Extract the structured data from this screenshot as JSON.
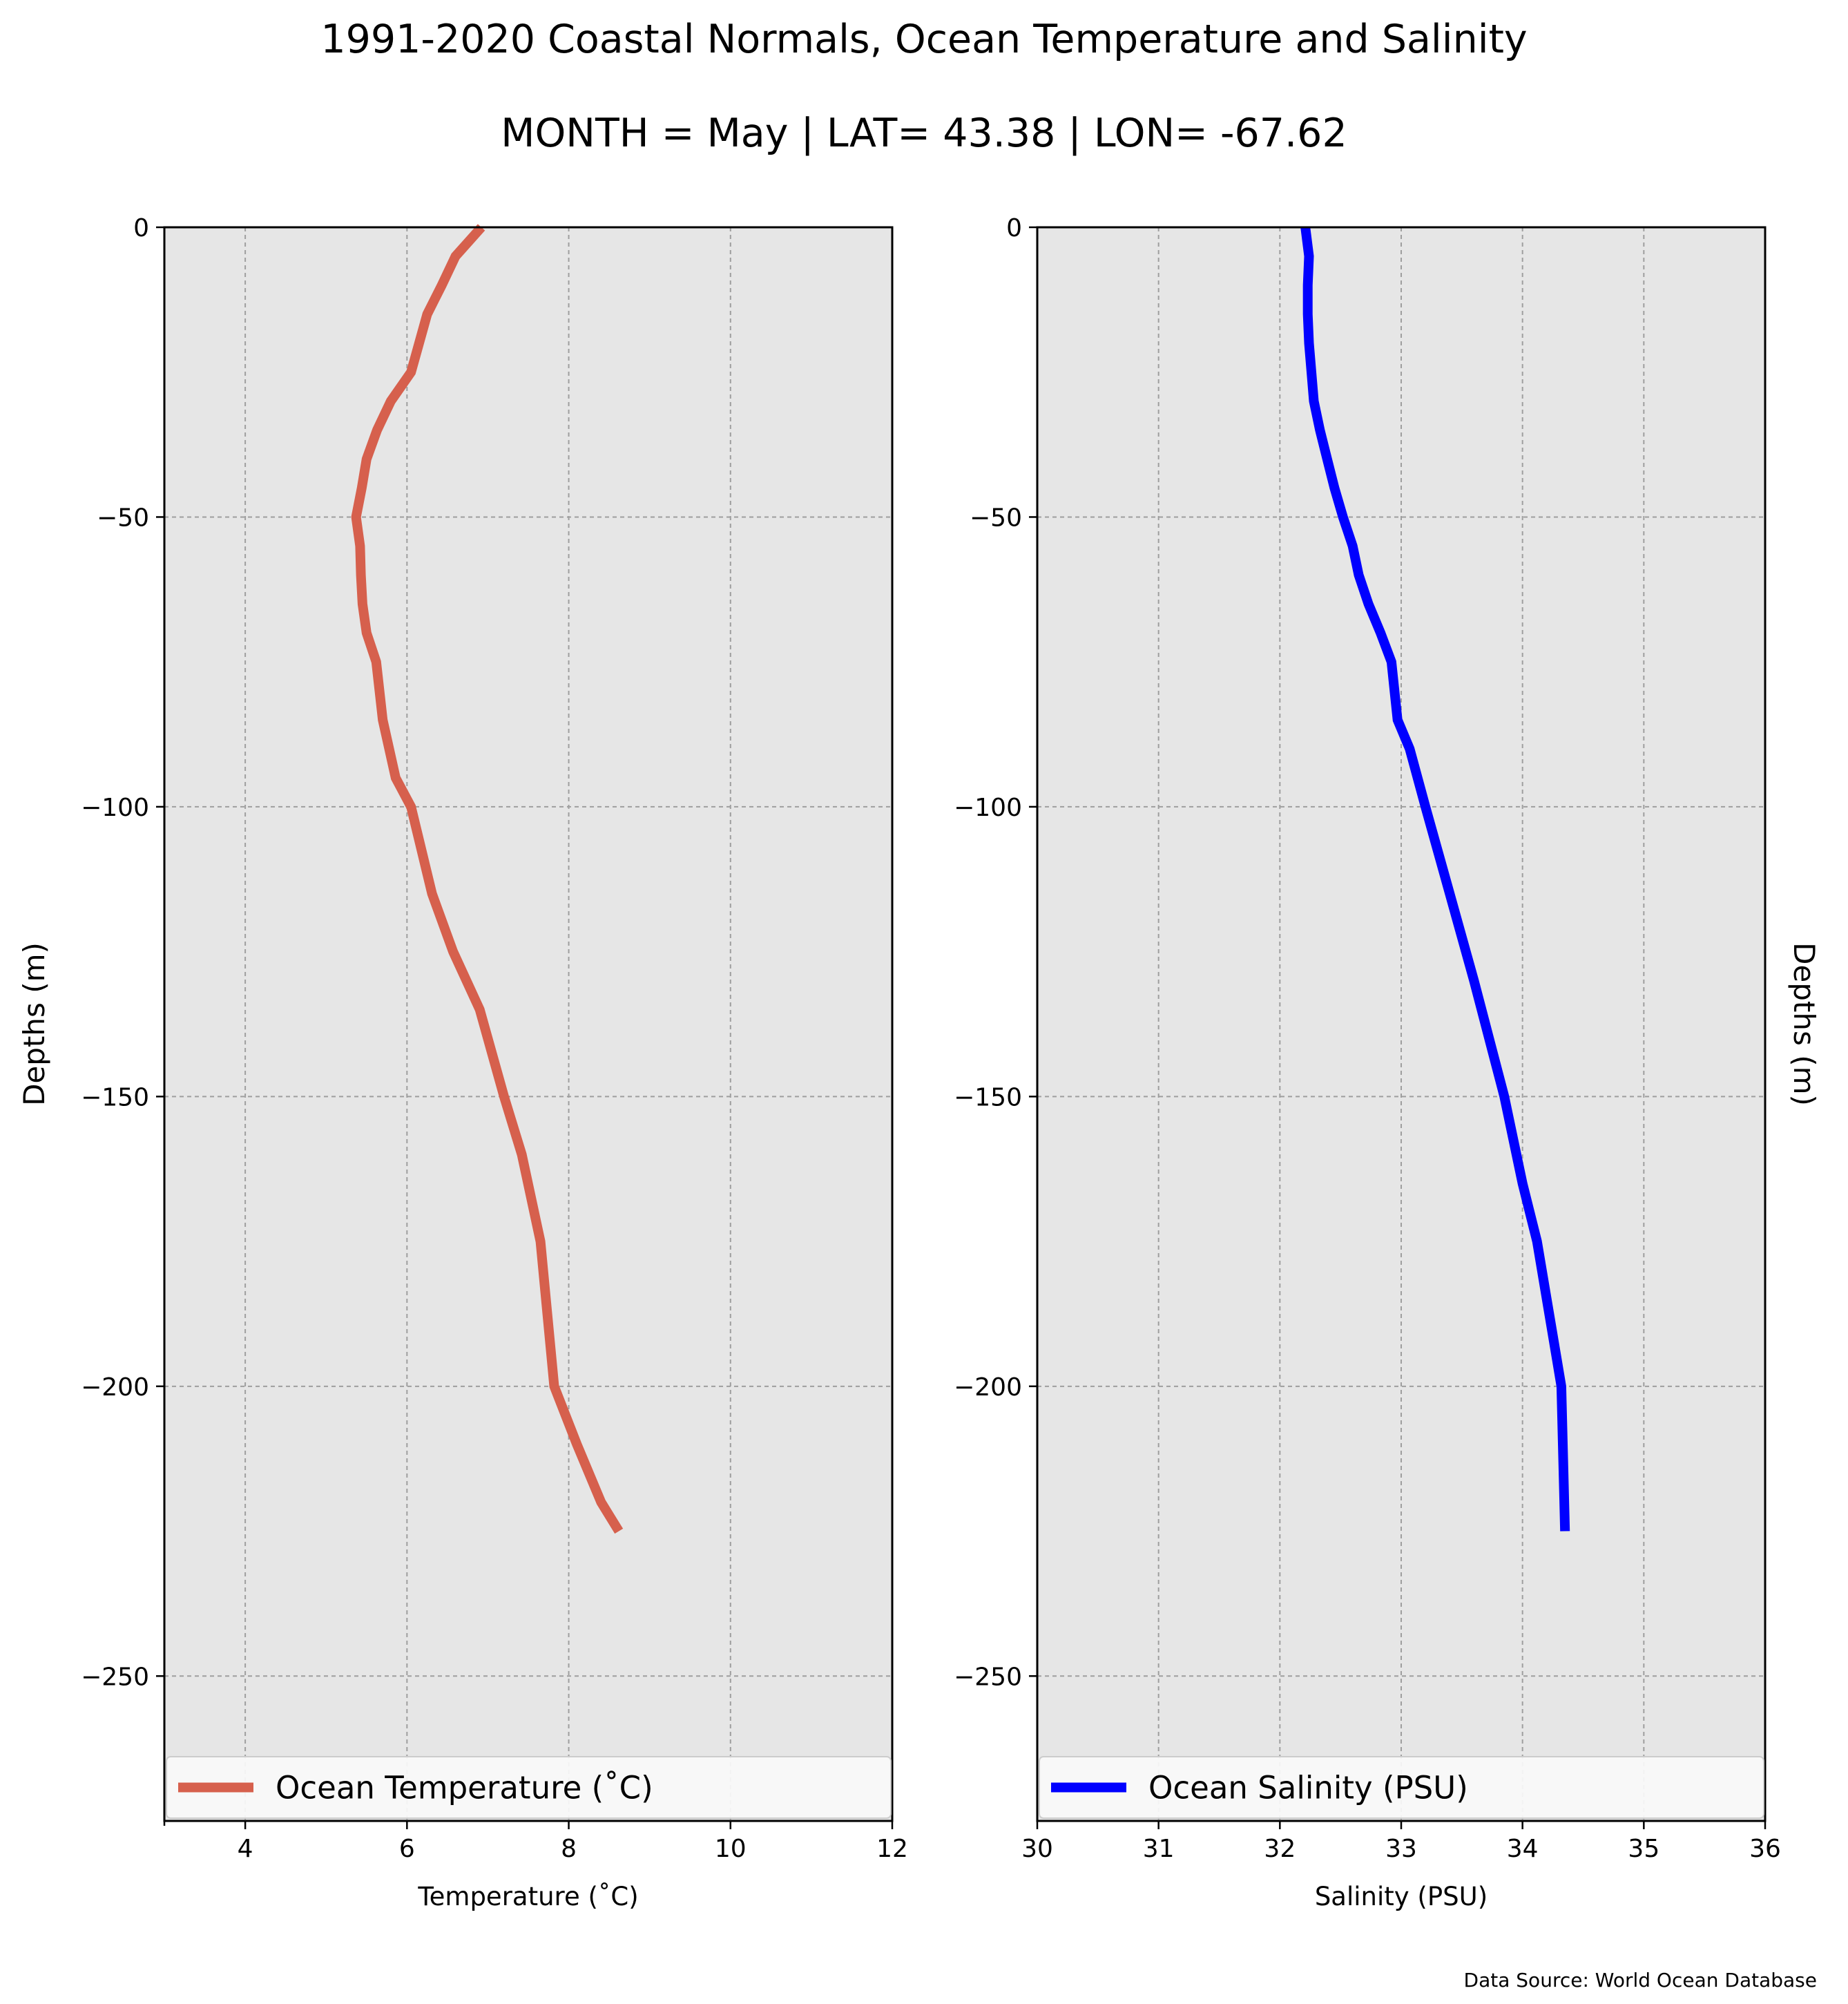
{
  "title_line1": "1991-2020 Coastal Normals, Ocean Temperature and Salinity",
  "title_line2": "MONTH = May | LAT= 43.38 | LON= -67.62",
  "source_note": "Data Source: World Ocean Database",
  "colors": {
    "background": "#e6e6e6",
    "grid": "#9e9e9e",
    "temperature": "#d6604d",
    "salinity": "#0000ff"
  },
  "chart_data": [
    {
      "type": "line",
      "xlabel": "Temperature ($^\\circ$C)",
      "xlabel_display": "Temperature (˚C)",
      "ylabel": "Depths (m)",
      "xlim": [
        3,
        12
      ],
      "ylim": [
        -275,
        0
      ],
      "xticks": [
        4,
        6,
        8,
        10,
        12
      ],
      "xtick_labels": [
        "4",
        "6",
        "8",
        "10",
        "12"
      ],
      "yticks": [
        0,
        -50,
        -100,
        -150,
        -200,
        -250
      ],
      "ytick_labels": [
        "0",
        "−50",
        "−100",
        "−150",
        "−200",
        "−250"
      ],
      "grid": true,
      "legend": "lower center",
      "series": [
        {
          "name": "Ocean Temperature (˚C)",
          "color": "#d6604d",
          "x": [
            6.92,
            6.6,
            6.43,
            6.25,
            6.05,
            5.8,
            5.63,
            5.5,
            5.44,
            5.37,
            5.42,
            5.43,
            5.45,
            5.5,
            5.62,
            5.7,
            5.86,
            6.05,
            6.31,
            6.57,
            6.9,
            7.2,
            7.42,
            7.65,
            7.82,
            8.1,
            8.4,
            8.62
          ],
          "y": [
            0,
            -5,
            -10,
            -15,
            -25,
            -30,
            -35,
            -40,
            -45,
            -50,
            -55,
            -60,
            -65,
            -70,
            -75,
            -85,
            -95,
            -100,
            -115,
            -125,
            -135,
            -150,
            -160,
            -175,
            -200,
            -210,
            -220,
            -225
          ]
        }
      ]
    },
    {
      "type": "line",
      "xlabel": "Salinity (PSU)",
      "ylabel": "Depths (m)",
      "xlim": [
        30,
        36
      ],
      "ylim": [
        -275,
        0
      ],
      "xticks": [
        30,
        31,
        32,
        33,
        34,
        35,
        36
      ],
      "xtick_labels": [
        "30",
        "31",
        "32",
        "33",
        "34",
        "35",
        "36"
      ],
      "yticks": [
        0,
        -50,
        -100,
        -150,
        -200,
        -250
      ],
      "ytick_labels": [
        "0",
        "−50",
        "−100",
        "−150",
        "−200",
        "−250"
      ],
      "grid": true,
      "legend": "lower center",
      "series": [
        {
          "name": "Ocean Salinity (PSU)",
          "color": "#0000ff",
          "x": [
            32.21,
            32.24,
            32.23,
            32.23,
            32.24,
            32.26,
            32.28,
            32.33,
            32.39,
            32.45,
            32.52,
            32.6,
            32.65,
            32.73,
            32.83,
            32.92,
            32.97,
            33.07,
            33.2,
            33.4,
            33.6,
            33.85,
            34.0,
            34.12,
            34.2,
            34.28,
            34.32,
            34.35
          ],
          "y": [
            0,
            -5,
            -10,
            -15,
            -20,
            -25,
            -30,
            -35,
            -40,
            -45,
            -50,
            -55,
            -60,
            -65,
            -70,
            -75,
            -85,
            -90,
            -100,
            -115,
            -130,
            -150,
            -165,
            -175,
            -185,
            -195,
            -200,
            -225
          ]
        }
      ]
    }
  ]
}
